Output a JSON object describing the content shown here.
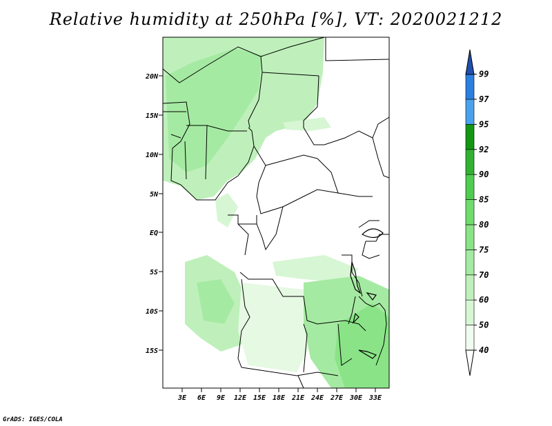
{
  "title": "Relative humidity at 250hPa [%], VT: 2020021212",
  "credit": "GrADS: IGES/COLA",
  "map": {
    "lat_labels": [
      "20N",
      "15N",
      "10N",
      "5N",
      "EQ",
      "5S",
      "10S",
      "15S"
    ],
    "lon_labels": [
      "3E",
      "6E",
      "9E",
      "12E",
      "15E",
      "18E",
      "21E",
      "24E",
      "27E",
      "30E",
      "33E"
    ]
  },
  "colorbar": {
    "levels": [
      "40",
      "50",
      "60",
      "70",
      "75",
      "80",
      "85",
      "90",
      "92",
      "95",
      "97",
      "99"
    ],
    "colors": [
      "#f0fcef",
      "#d7f6d4",
      "#bff0bb",
      "#a5eaa2",
      "#8ae487",
      "#6fdc6d",
      "#50cc50",
      "#31b231",
      "#139713",
      "#4aa2ec",
      "#2c7fe0",
      "#1f5fc2"
    ]
  }
}
